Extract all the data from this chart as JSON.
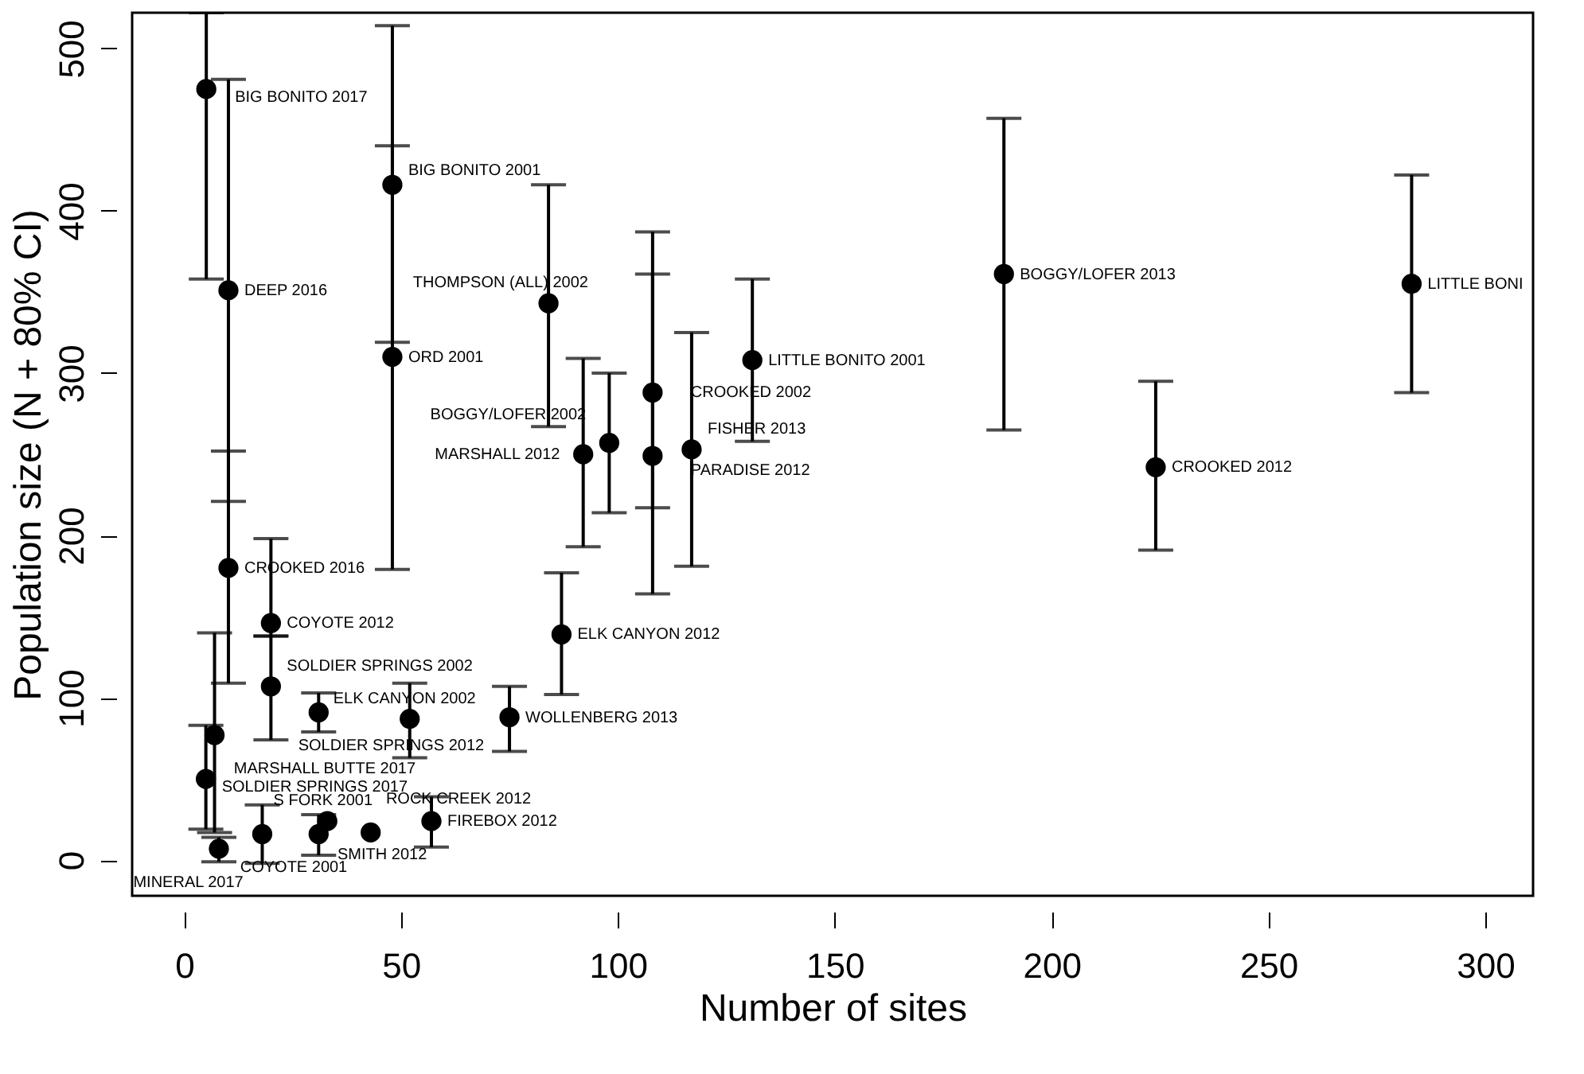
{
  "chart_data": {
    "type": "scatter",
    "xlabel": "Number of sites",
    "ylabel": "Population size (N + 80% CI)",
    "xlim": [
      -12,
      311
    ],
    "ylim": [
      -22,
      522
    ],
    "xticks": [
      0,
      50,
      100,
      150,
      200,
      250,
      300
    ],
    "yticks": [
      0,
      100,
      200,
      300,
      400,
      500
    ],
    "grid": false,
    "marker": "circle",
    "series": [
      {
        "color": "#000000",
        "x": [
          5.1,
          10.2,
          10.2,
          48,
          48,
          84,
          92,
          98,
          108,
          108,
          117,
          131,
          189,
          224,
          283,
          87,
          75,
          52,
          31,
          20,
          20,
          7,
          5,
          8,
          18,
          31,
          33,
          43,
          57
        ],
        "values": [
          475,
          351,
          180,
          416,
          310,
          343,
          250,
          257,
          288,
          249,
          253,
          308,
          361,
          242,
          355,
          139,
          88,
          87,
          91,
          146,
          107,
          77,
          50,
          7,
          16,
          16,
          24,
          17,
          24
        ],
        "errors": [
          [
            358,
            522
          ],
          [
            221,
            481
          ],
          [
            109,
            252
          ],
          [
            319,
            514
          ],
          [
            179,
            440
          ],
          [
            267,
            416
          ],
          [
            193,
            309
          ],
          [
            214,
            300
          ],
          [
            217,
            361
          ],
          [
            164,
            387
          ],
          [
            181,
            325
          ],
          [
            258,
            358
          ],
          [
            265,
            457
          ],
          [
            191,
            295
          ],
          [
            288,
            422
          ],
          [
            102,
            177
          ],
          [
            67,
            107
          ],
          [
            63,
            109
          ],
          [
            79,
            103
          ],
          [
            138,
            198
          ],
          [
            74,
            138
          ],
          [
            17,
            140
          ],
          [
            19,
            83
          ],
          [
            -1,
            14
          ],
          [
            -2,
            34
          ],
          [
            3,
            28
          ],
          null,
          null,
          [
            8,
            39
          ]
        ]
      }
    ],
    "annotations": [
      {
        "text": "BIG BONITO 2017",
        "x": 5.1,
        "y": 475
      },
      {
        "text": "DEEP 2016",
        "x": 10.2,
        "y": 351
      },
      {
        "text": "CROOKED 2016",
        "x": 10.2,
        "y": 180
      },
      {
        "text": "BIG BONITO 2001",
        "x": 48,
        "y": 416
      },
      {
        "text": "ORD 2001",
        "x": 48,
        "y": 310
      },
      {
        "text": "THOMPSON (ALL) 2002",
        "x": 84,
        "y": 343
      },
      {
        "text": "MARSHALL 2012",
        "x": 92,
        "y": 250
      },
      {
        "text": "BOGGY/LOFER 2002",
        "x": 98,
        "y": 257
      },
      {
        "text": "CROOKED 2002",
        "x": 108,
        "y": 288
      },
      {
        "text": "PARADISE 2012",
        "x": 108,
        "y": 249
      },
      {
        "text": "FISHER 2013",
        "x": 117,
        "y": 253
      },
      {
        "text": "LITTLE BONITO 2001",
        "x": 131,
        "y": 308
      },
      {
        "text": "BOGGY/LOFER 2013",
        "x": 189,
        "y": 361
      },
      {
        "text": "CROOKED 2012",
        "x": 224,
        "y": 242
      },
      {
        "text": "LITTLE BONI",
        "x": 283,
        "y": 355
      },
      {
        "text": "ELK CANYON 2012",
        "x": 87,
        "y": 139
      },
      {
        "text": "WOLLENBERG 2013",
        "x": 75,
        "y": 88
      },
      {
        "text": "ELK CANYON 2002",
        "x": 52,
        "y": 87
      },
      {
        "text": "SOLDIER SPRINGS 2012",
        "x": 31,
        "y": 91
      },
      {
        "text": "COYOTE 2012",
        "x": 20,
        "y": 146
      },
      {
        "text": "SOLDIER SPRINGS 2002",
        "x": 20,
        "y": 107
      },
      {
        "text": "MARSHALL BUTTE 2017",
        "x": 7,
        "y": 77
      },
      {
        "text": "SOLDIER SPRINGS 2017",
        "x": 5,
        "y": 50
      },
      {
        "text": "MINERAL 2017",
        "x": 8,
        "y": 7
      },
      {
        "text": "S FORK 2001",
        "x": 18,
        "y": 16
      },
      {
        "text": "COYOTE 2001",
        "x": 31,
        "y": 16
      },
      {
        "text": "SMITH 2012",
        "x": 33,
        "y": 24
      },
      {
        "text": "ROCK CREEK 2012",
        "x": 43,
        "y": 17
      },
      {
        "text": "FIREBOX 2012",
        "x": 57,
        "y": 24
      }
    ]
  }
}
